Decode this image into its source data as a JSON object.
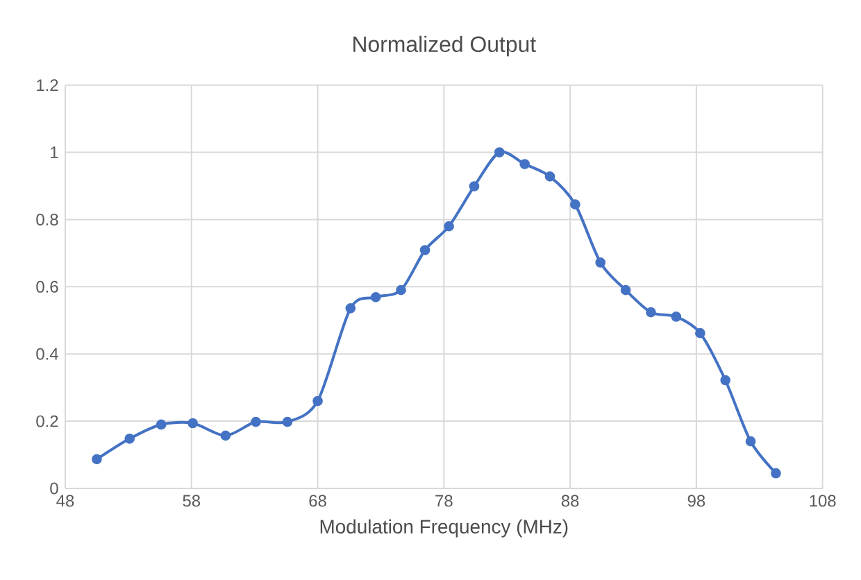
{
  "chart_data": {
    "type": "line",
    "title": "Normalized Output",
    "xlabel": "Modulation Frequency (MHz)",
    "x": [
      50.5,
      53.1,
      55.6,
      58.1,
      60.7,
      63.1,
      65.6,
      68.0,
      70.6,
      72.6,
      74.6,
      76.5,
      78.4,
      80.4,
      82.4,
      84.4,
      86.4,
      88.4,
      90.4,
      92.4,
      94.4,
      96.4,
      98.3,
      100.3,
      102.3,
      104.3
    ],
    "series": [
      {
        "color": "#4472c4",
        "values": [
          0.087,
          0.148,
          0.19,
          0.194,
          0.157,
          0.198,
          0.198,
          0.26,
          0.536,
          0.569,
          0.59,
          0.709,
          0.78,
          0.899,
          1.0,
          0.965,
          0.928,
          0.845,
          0.672,
          0.59,
          0.524,
          0.511,
          0.462,
          0.322,
          0.14,
          0.045
        ]
      }
    ],
    "xlim": [
      48,
      108
    ],
    "xticks": [
      48,
      58,
      68,
      78,
      88,
      98,
      108
    ],
    "ylim": [
      0,
      1.2
    ],
    "yticks": [
      0,
      {
        "value": 0.2,
        "label": "0.2"
      },
      {
        "value": 0.4,
        "label": "0.4"
      },
      {
        "value": 0.6,
        "label": "0.6"
      },
      {
        "value": 0.8,
        "label": "0.8"
      },
      1,
      {
        "value": 1.2,
        "label": "1.2"
      }
    ],
    "grid": true,
    "marker": "circle",
    "line_style": "solid"
  }
}
